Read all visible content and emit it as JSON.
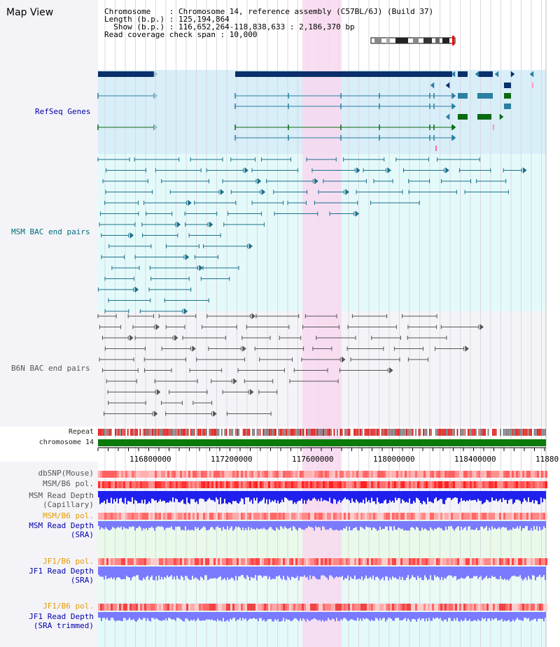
{
  "title": "Map View",
  "info": {
    "chromosome": "Chromosome    : Chromosome 14, reference assembly (C57BL/6J) (Build 37)",
    "length": "Length (b.p.) : 125,194,864",
    "show": "  Show (b.p.) : 116,652,264-118,838,633 : 2,186,370 bp",
    "coverage": "Read coverage check span : 10,000"
  },
  "tracks": {
    "refseq": "RefSeq Genes",
    "msm_bac": "MSM BAC end pairs",
    "b6n_bac": "B6N BAC end pairs",
    "repeat": "Repeat",
    "chromosome": "chromosome 14",
    "dbsnp": "dbSNP(Mouse)",
    "msm_b6_pol": "MSM/B6 pol.",
    "msm_depth_cap_1": "MSM Read Depth",
    "msm_depth_cap_2": "(Capillary)",
    "msm_b6_pol_2": "MSM/B6 pol.",
    "msm_depth_sra_1": "MSM Read Depth",
    "msm_depth_sra_2": "(SRA)",
    "jf1_b6_pol": "JF1/B6 pol.",
    "jf1_depth_sra_1": "JF1 Read Depth",
    "jf1_depth_sra_2": "(SRA)",
    "jf1_b6_pol_2": "JF1/B6 pol.",
    "jf1_depth_trim_1": "JF1 Read Depth",
    "jf1_depth_trim_2": "(SRA trimmed)"
  },
  "axis": {
    "ticks": [
      "116800000",
      "117200000",
      "117600000",
      "118000000",
      "118400000",
      "11880"
    ]
  },
  "colors": {
    "refseq_bg": "#d8eef8",
    "msm_bg": "#e4fafa",
    "b6n_bg": "#f4f4f8",
    "highlight": "#f8d8f0",
    "gene_dark": "#0a2f6a",
    "gene_teal": "#2a7fa0",
    "gene_green": "#0a6a12",
    "msm_line": "#1a6f8a",
    "b6n_line": "#555555",
    "chromosome_bar": "#0a7a0a",
    "depth_blue": "#2020ee",
    "depth_light": "#7a7aff"
  }
}
